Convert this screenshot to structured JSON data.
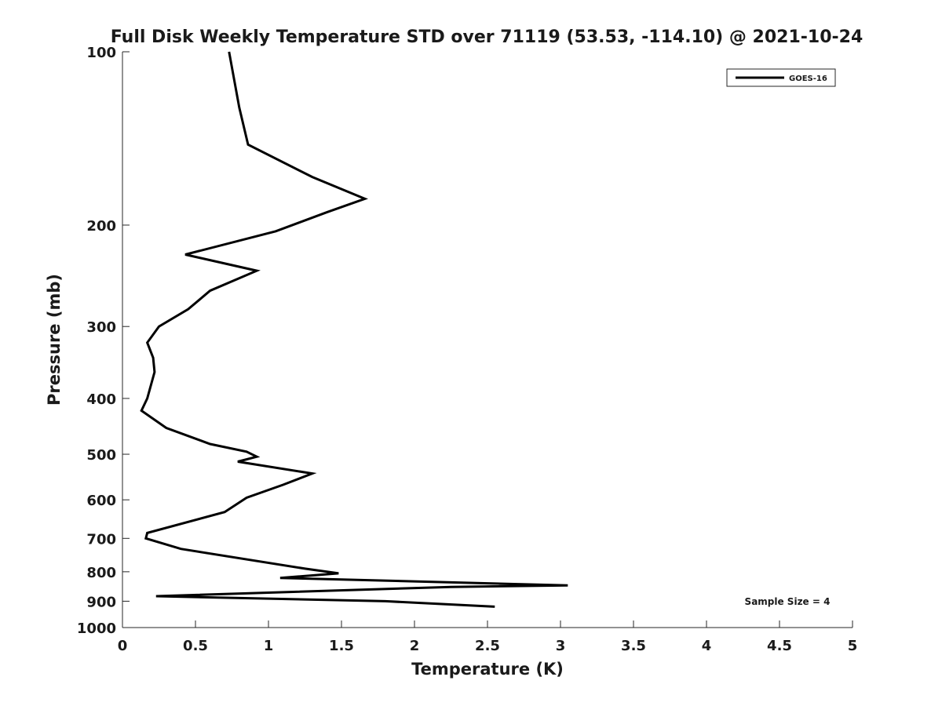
{
  "chart_data": {
    "type": "line",
    "title": "Full Disk Weekly Temperature STD over 71119 (53.53, -114.10) @ 2021-10-24",
    "xlabel": "Temperature (K)",
    "ylabel": "Pressure (mb)",
    "xlim": [
      0,
      5
    ],
    "ylim": [
      100,
      1000
    ],
    "y_scale": "log",
    "y_reversed": true,
    "grid": false,
    "legend_position": "top-right",
    "x_ticks": [
      "0",
      "0.5",
      "1",
      "1.5",
      "2",
      "2.5",
      "3",
      "3.5",
      "4",
      "4.5",
      "5"
    ],
    "y_ticks": [
      "100",
      "200",
      "300",
      "400",
      "500",
      "600",
      "700",
      "800",
      "900",
      "1000"
    ],
    "annotation": "Sample Size = 4",
    "series": [
      {
        "name": "GOES-16",
        "color": "#000000",
        "x": [
          0.73,
          0.8,
          0.86,
          1.3,
          1.66,
          1.4,
          1.05,
          0.43,
          0.92,
          0.6,
          0.45,
          0.25,
          0.17,
          0.21,
          0.22,
          0.17,
          0.13,
          0.3,
          0.6,
          0.85,
          0.92,
          0.79,
          1.3,
          1.1,
          0.85,
          0.7,
          0.17,
          0.16,
          0.4,
          1.25,
          1.48,
          1.08,
          3.05,
          2.25,
          0.23,
          1.8,
          2.55
        ],
        "y": [
          100,
          125,
          145,
          165,
          180,
          190,
          205,
          225,
          240,
          260,
          280,
          300,
          320,
          340,
          360,
          400,
          420,
          450,
          480,
          495,
          505,
          515,
          540,
          565,
          595,
          630,
          685,
          700,
          730,
          790,
          805,
          820,
          845,
          850,
          882,
          900,
          920
        ]
      }
    ]
  }
}
